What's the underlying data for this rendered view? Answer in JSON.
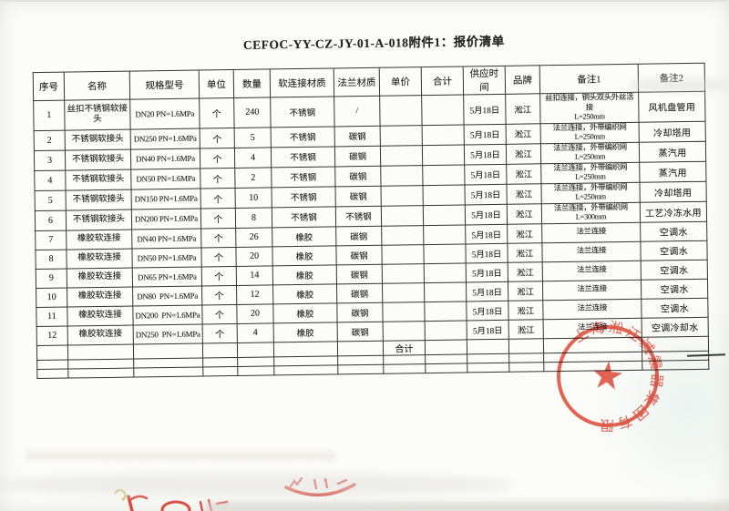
{
  "title": "CEFOC-YY-CZ-JY-01-A-018附件1：报价清单",
  "table": {
    "headers": [
      "序号",
      "名称",
      "规格型号",
      "单位",
      "数量",
      "软连接材质",
      "法兰材质",
      "单价",
      "合计",
      "供应时间",
      "品牌",
      "备注1",
      "备注2"
    ],
    "rows": [
      {
        "seq": "1",
        "name": "丝扣不锈钢软接头",
        "spec": "DN20 PN=1.6MPa",
        "unit": "个",
        "qty": "240",
        "soft_material": "不锈钢",
        "flange_material": "/",
        "unit_price": "",
        "total": "",
        "supply_date": "5月18日",
        "brand": "淞江",
        "note1_line1": "丝扣连接，铜头双头外丝活接",
        "note1_line2": "L=250mm",
        "note2": "风机盘管用"
      },
      {
        "seq": "2",
        "name": "不锈钢软接头",
        "spec": "DN250 PN=1.6MPa",
        "unit": "个",
        "qty": "5",
        "soft_material": "不锈钢",
        "flange_material": "碳钢",
        "unit_price": "",
        "total": "",
        "supply_date": "5月18日",
        "brand": "淞江",
        "note1_line1": "法兰连接，外带编织网",
        "note1_line2": "L=250mm",
        "note2": "冷却塔用"
      },
      {
        "seq": "3",
        "name": "不锈钢软接头",
        "spec": "DN40 PN=1.6MPa",
        "unit": "个",
        "qty": "4",
        "soft_material": "不锈钢",
        "flange_material": "碳钢",
        "unit_price": "",
        "total": "",
        "supply_date": "5月18日",
        "brand": "淞江",
        "note1_line1": "法兰连接，外带编织网",
        "note1_line2": "L=250mm",
        "note2": "蒸汽用"
      },
      {
        "seq": "4",
        "name": "不锈钢软接头",
        "spec": "DN50 PN=1.6MPa",
        "unit": "个",
        "qty": "2",
        "soft_material": "不锈钢",
        "flange_material": "碳钢",
        "unit_price": "",
        "total": "",
        "supply_date": "5月18日",
        "brand": "淞江",
        "note1_line1": "法兰连接，外带编织网",
        "note1_line2": "L=250mm",
        "note2": "蒸汽用"
      },
      {
        "seq": "5",
        "name": "不锈钢软接头",
        "spec": "DN150 PN=1.6MPa",
        "unit": "个",
        "qty": "10",
        "soft_material": "不锈钢",
        "flange_material": "碳钢",
        "unit_price": "",
        "total": "",
        "supply_date": "5月18日",
        "brand": "淞江",
        "note1_line1": "法兰连接，外带编织网",
        "note1_line2": "L=250mm",
        "note2": "冷却塔用"
      },
      {
        "seq": "6",
        "name": "不锈钢软接头",
        "spec": "DN200 PN=1.6MPa",
        "unit": "个",
        "qty": "8",
        "soft_material": "不锈钢",
        "flange_material": "不锈钢",
        "unit_price": "",
        "total": "",
        "supply_date": "5月18日",
        "brand": "淞江",
        "note1_line1": "法兰连接，外带编织网",
        "note1_line2": "L=300mm",
        "note2": "工艺冷冻水用"
      },
      {
        "seq": "7",
        "name": "橡胶软连接",
        "spec": "DN40 PN=1.6MPa",
        "unit": "个",
        "qty": "26",
        "soft_material": "橡胶",
        "flange_material": "碳钢",
        "unit_price": "",
        "total": "",
        "supply_date": "5月18日",
        "brand": "淞江",
        "note1_line1": "法兰连接",
        "note1_line2": "",
        "note2": "空调水"
      },
      {
        "seq": "8",
        "name": "橡胶软连接",
        "spec": "DN50 PN=1.6MPa",
        "unit": "个",
        "qty": "20",
        "soft_material": "橡胶",
        "flange_material": "碳钢",
        "unit_price": "",
        "total": "",
        "supply_date": "5月18日",
        "brand": "淞江",
        "note1_line1": "法兰连接",
        "note1_line2": "",
        "note2": "空调水"
      },
      {
        "seq": "9",
        "name": "橡胶软连接",
        "spec": "DN65 PN=1.6MPa",
        "unit": "个",
        "qty": "14",
        "soft_material": "橡胶",
        "flange_material": "碳钢",
        "unit_price": "",
        "total": "",
        "supply_date": "5月18日",
        "brand": "淞江",
        "note1_line1": "法兰连接",
        "note1_line2": "",
        "note2": "空调水"
      },
      {
        "seq": "10",
        "name": "橡胶软连接",
        "spec": "DN80  PN=1.6MPa",
        "unit": "个",
        "qty": "12",
        "soft_material": "橡胶",
        "flange_material": "碳钢",
        "unit_price": "",
        "total": "",
        "supply_date": "5月18日",
        "brand": "淞江",
        "note1_line1": "法兰连接",
        "note1_line2": "",
        "note2": "空调水"
      },
      {
        "seq": "11",
        "name": "橡胶软连接",
        "spec": "DN200  PN=1.6MPa",
        "unit": "个",
        "qty": "20",
        "soft_material": "橡胶",
        "flange_material": "碳钢",
        "unit_price": "",
        "total": "",
        "supply_date": "5月18日",
        "brand": "淞江",
        "note1_line1": "法兰连接",
        "note1_line2": "",
        "note2": "空调水"
      },
      {
        "seq": "12",
        "name": "橡胶软连接",
        "spec": "DN250  PN=1.6MPa",
        "unit": "个",
        "qty": "4",
        "soft_material": "橡胶",
        "flange_material": "碳钢",
        "unit_price": "",
        "total": "",
        "supply_date": "5月18日",
        "brand": "淞江",
        "note1_line1": "法兰连接",
        "note1_line2": "",
        "note2": "空调冷却水"
      }
    ],
    "summary": {
      "label": "合计"
    }
  },
  "stamp": {
    "company_text": "上海淞江减震器集团有限公司",
    "star": "★",
    "color": "#dd2d1a"
  },
  "colors": {
    "ink": "#1d1d1d",
    "handwriting_red": "#d9372a",
    "paper": "#fcfcf9"
  }
}
